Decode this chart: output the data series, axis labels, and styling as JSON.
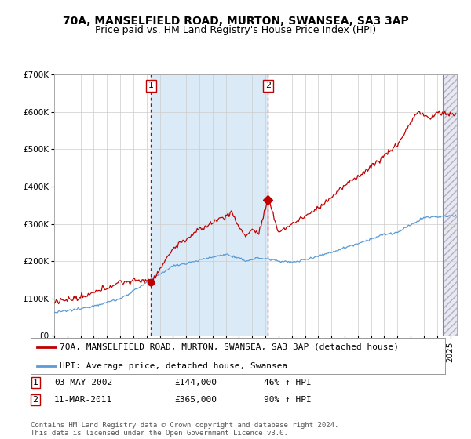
{
  "title": "70A, MANSELFIELD ROAD, MURTON, SWANSEA, SA3 3AP",
  "subtitle": "Price paid vs. HM Land Registry's House Price Index (HPI)",
  "ylim": [
    0,
    700000
  ],
  "yticks": [
    0,
    100000,
    200000,
    300000,
    400000,
    500000,
    600000,
    700000
  ],
  "ytick_labels": [
    "£0",
    "£100K",
    "£200K",
    "£300K",
    "£400K",
    "£500K",
    "£600K",
    "£700K"
  ],
  "hpi_color": "#5b9bd5",
  "price_color": "#c00000",
  "sale1_date_num": 2002.34,
  "sale1_price": 144000,
  "sale2_date_num": 2011.19,
  "sale2_price": 365000,
  "shade_color": "#daeaf7",
  "legend_price_label": "70A, MANSELFIELD ROAD, MURTON, SWANSEA, SA3 3AP (detached house)",
  "legend_hpi_label": "HPI: Average price, detached house, Swansea",
  "table_rows": [
    [
      "1",
      "03-MAY-2002",
      "£144,000",
      "46% ↑ HPI"
    ],
    [
      "2",
      "11-MAR-2011",
      "£365,000",
      "90% ↑ HPI"
    ]
  ],
  "footnote": "Contains HM Land Registry data © Crown copyright and database right 2024.\nThis data is licensed under the Open Government Licence v3.0.",
  "bg_color": "#ffffff",
  "grid_color": "#cccccc",
  "title_fontsize": 10,
  "subtitle_fontsize": 9,
  "tick_fontsize": 7.5,
  "legend_fontsize": 8,
  "table_fontsize": 8,
  "footnote_fontsize": 6.5
}
